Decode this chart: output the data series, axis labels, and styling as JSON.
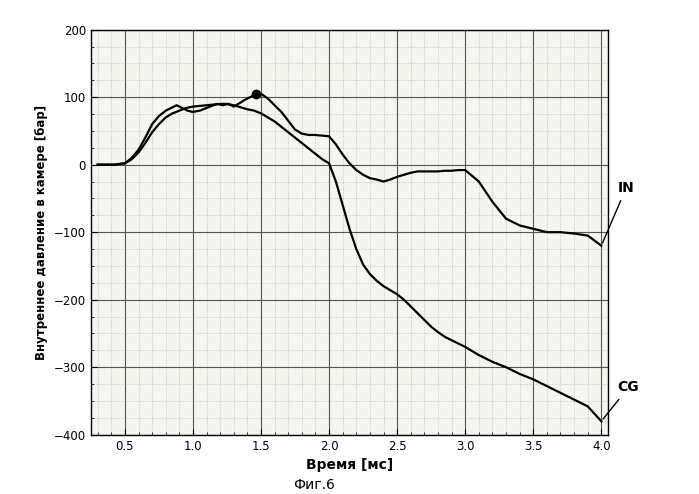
{
  "title": "",
  "xlabel": "Время [мс]",
  "ylabel": "Внутреннее давление в камере [бар]",
  "figcaption": "Фиг.6",
  "xlim": [
    0.25,
    4.05
  ],
  "ylim": [
    -400,
    200
  ],
  "xticks": [
    0.5,
    1.0,
    1.5,
    2.0,
    2.5,
    3.0,
    3.5,
    4.0
  ],
  "yticks": [
    -400,
    -300,
    -200,
    -100,
    0,
    100,
    200
  ],
  "label_IN": "IN",
  "label_CG": "CG",
  "IN_x": [
    0.3,
    0.42,
    0.5,
    0.55,
    0.6,
    0.65,
    0.7,
    0.75,
    0.8,
    0.85,
    0.88,
    0.92,
    0.96,
    1.0,
    1.05,
    1.1,
    1.15,
    1.18,
    1.22,
    1.26,
    1.3,
    1.35,
    1.38,
    1.42,
    1.46,
    1.5,
    1.55,
    1.6,
    1.65,
    1.7,
    1.75,
    1.8,
    1.85,
    1.9,
    1.95,
    2.0,
    2.05,
    2.1,
    2.15,
    2.2,
    2.25,
    2.3,
    2.35,
    2.4,
    2.45,
    2.5,
    2.55,
    2.6,
    2.65,
    2.7,
    2.75,
    2.8,
    2.85,
    2.9,
    2.95,
    3.0,
    3.1,
    3.2,
    3.3,
    3.4,
    3.5,
    3.6,
    3.7,
    3.8,
    3.9,
    4.0
  ],
  "IN_y": [
    0,
    0,
    2,
    10,
    22,
    40,
    60,
    72,
    80,
    85,
    88,
    84,
    80,
    78,
    80,
    84,
    88,
    90,
    88,
    90,
    86,
    92,
    96,
    100,
    104,
    105,
    98,
    88,
    78,
    65,
    52,
    46,
    44,
    44,
    43,
    42,
    30,
    15,
    2,
    -8,
    -15,
    -20,
    -22,
    -25,
    -22,
    -18,
    -15,
    -12,
    -10,
    -10,
    -10,
    -10,
    -9,
    -9,
    -8,
    -8,
    -25,
    -55,
    -80,
    -90,
    -95,
    -100,
    -100,
    -102,
    -105,
    -120
  ],
  "CG_x": [
    0.3,
    0.42,
    0.5,
    0.55,
    0.6,
    0.65,
    0.7,
    0.75,
    0.8,
    0.85,
    0.9,
    0.95,
    1.0,
    1.05,
    1.1,
    1.15,
    1.2,
    1.25,
    1.3,
    1.35,
    1.4,
    1.45,
    1.5,
    1.55,
    1.6,
    1.65,
    1.7,
    1.75,
    1.8,
    1.85,
    1.9,
    1.95,
    2.0,
    2.05,
    2.1,
    2.15,
    2.2,
    2.25,
    2.3,
    2.35,
    2.4,
    2.45,
    2.5,
    2.55,
    2.6,
    2.65,
    2.7,
    2.75,
    2.8,
    2.85,
    2.9,
    2.95,
    3.0,
    3.1,
    3.2,
    3.3,
    3.4,
    3.5,
    3.6,
    3.7,
    3.8,
    3.9,
    4.0
  ],
  "CG_y": [
    0,
    0,
    2,
    8,
    18,
    32,
    48,
    60,
    70,
    76,
    80,
    84,
    86,
    87,
    88,
    89,
    90,
    90,
    88,
    85,
    82,
    80,
    76,
    70,
    64,
    56,
    48,
    40,
    32,
    24,
    16,
    8,
    2,
    -25,
    -60,
    -95,
    -125,
    -148,
    -162,
    -172,
    -180,
    -186,
    -192,
    -200,
    -210,
    -220,
    -230,
    -240,
    -248,
    -255,
    -260,
    -265,
    -270,
    -282,
    -292,
    -300,
    -310,
    -318,
    -328,
    -338,
    -348,
    -358,
    -380
  ],
  "peak_x": 1.46,
  "peak_y": 104,
  "line_color": "#000000",
  "line_width": 1.6,
  "bg_color": "#f5f5f0",
  "major_grid_color": "#555555",
  "minor_grid_color": "#999999"
}
